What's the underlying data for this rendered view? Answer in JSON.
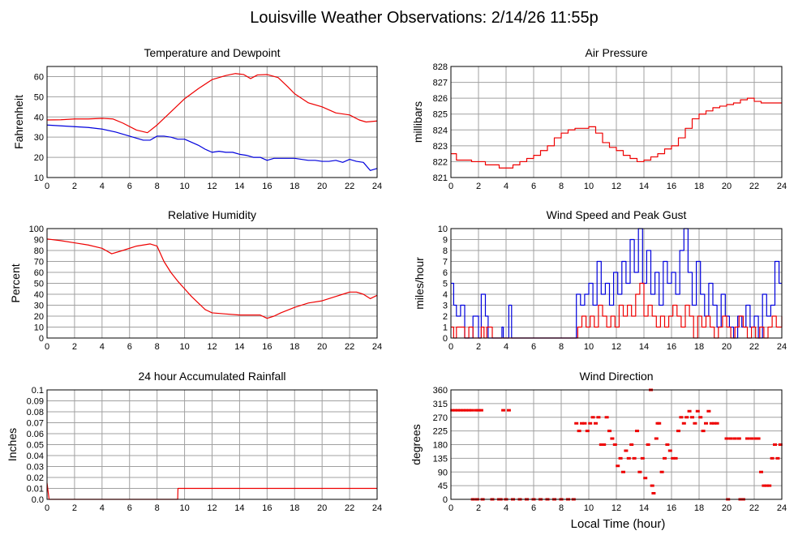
{
  "page": {
    "title": "Louisville Weather Observations: 2/14/26 11:55p",
    "xlabel": "Local Time (hour)"
  },
  "colors": {
    "red": "#ee0000",
    "blue": "#0000dd",
    "grid": "#a0a0a0",
    "frame": "#000000"
  },
  "chart_data": [
    {
      "id": "temp",
      "type": "line",
      "title": "Temperature and Dewpoint",
      "ylabel": "Fahrenheit",
      "xlim": [
        0,
        24
      ],
      "ylim": [
        10,
        65
      ],
      "yticks": [
        10,
        20,
        30,
        40,
        50,
        60
      ],
      "xticks": [
        0,
        2,
        4,
        6,
        8,
        10,
        12,
        14,
        16,
        18,
        20,
        22,
        24
      ],
      "grid": true,
      "series": [
        {
          "color": "red",
          "step": false,
          "x": [
            0,
            1,
            2,
            3,
            4,
            4.8,
            5.5,
            6.5,
            7.3,
            8,
            9,
            10,
            11,
            12,
            13,
            13.7,
            14.3,
            14.8,
            15.3,
            16,
            16.8,
            17.5,
            18,
            19,
            20,
            21,
            22,
            22.7,
            23.2,
            24
          ],
          "y": [
            38.5,
            38.6,
            39,
            39,
            39.3,
            39,
            37,
            33.5,
            32.2,
            36,
            42.5,
            49,
            54,
            58.5,
            60.5,
            61.5,
            61,
            59,
            60.8,
            61,
            59.5,
            55,
            51.5,
            47,
            45,
            42,
            41,
            38.5,
            37.5,
            38
          ]
        },
        {
          "color": "blue",
          "step": false,
          "x": [
            0,
            1,
            2,
            3,
            4,
            5,
            6,
            7,
            7.5,
            8,
            8.5,
            9,
            9.5,
            10,
            10.5,
            11,
            11.5,
            12,
            12.5,
            13,
            13.5,
            14,
            14.5,
            15,
            15.5,
            16,
            16.5,
            17,
            17.5,
            18,
            18.5,
            19,
            19.5,
            20,
            20.5,
            21,
            21.5,
            22,
            22.5,
            23,
            23.5,
            24
          ],
          "y": [
            36,
            35.6,
            35.2,
            34.8,
            34,
            32.5,
            30.5,
            28.5,
            28.5,
            30.5,
            30.5,
            30,
            29,
            29,
            27.5,
            26,
            24,
            22.5,
            23,
            22.5,
            22.5,
            21.5,
            21,
            20,
            20,
            18.5,
            19.5,
            19.5,
            19.5,
            19.5,
            19,
            18.5,
            18.5,
            18,
            18,
            18.5,
            17.5,
            19,
            18,
            17.5,
            13.5,
            14.5
          ]
        }
      ]
    },
    {
      "id": "pressure",
      "type": "line",
      "title": "Air Pressure",
      "ylabel": "millibars",
      "xlim": [
        0,
        24
      ],
      "ylim": [
        821,
        828
      ],
      "yticks": [
        821,
        822,
        823,
        824,
        825,
        826,
        827,
        828
      ],
      "xticks": [
        0,
        2,
        4,
        6,
        8,
        10,
        12,
        14,
        16,
        18,
        20,
        22,
        24
      ],
      "grid": true,
      "series": [
        {
          "color": "red",
          "step": true,
          "x": [
            0,
            0.4,
            1.5,
            2.5,
            3.5,
            4.5,
            5,
            5.5,
            6,
            6.5,
            7,
            7.5,
            8,
            8.5,
            9,
            9.5,
            10,
            10.5,
            11,
            11.5,
            12,
            12.5,
            13,
            13.5,
            14,
            14.5,
            15,
            15.5,
            16,
            16.5,
            17,
            17.5,
            18,
            18.5,
            19,
            19.5,
            20,
            20.5,
            21,
            21.5,
            22,
            22.5,
            23,
            23.5,
            24
          ],
          "y": [
            822.5,
            822.1,
            822,
            821.8,
            821.6,
            821.8,
            822,
            822.2,
            822.4,
            822.7,
            823,
            823.5,
            823.8,
            824,
            824.1,
            824.1,
            824.2,
            823.8,
            823.2,
            822.9,
            822.7,
            822.4,
            822.2,
            822.0,
            822.1,
            822.3,
            822.5,
            822.8,
            823.0,
            823.5,
            824.1,
            824.7,
            825.0,
            825.2,
            825.4,
            825.5,
            825.6,
            825.7,
            825.9,
            826.0,
            825.8,
            825.7,
            825.7,
            825.7,
            825.7
          ]
        }
      ]
    },
    {
      "id": "rh",
      "type": "line",
      "title": "Relative Humidity",
      "ylabel": "Percent",
      "xlim": [
        0,
        24
      ],
      "ylim": [
        0,
        100
      ],
      "yticks": [
        0,
        10,
        20,
        30,
        40,
        50,
        60,
        70,
        80,
        90,
        100
      ],
      "xticks": [
        0,
        2,
        4,
        6,
        8,
        10,
        12,
        14,
        16,
        18,
        20,
        22,
        24
      ],
      "grid": true,
      "series": [
        {
          "color": "red",
          "step": false,
          "x": [
            0,
            1,
            2,
            3,
            4,
            4.7,
            5.5,
            6.5,
            7.5,
            8,
            8.5,
            9,
            9.5,
            10,
            10.5,
            11,
            11.5,
            12,
            13,
            14,
            15,
            15.5,
            16,
            16.5,
            17,
            18,
            19,
            20,
            21,
            21.5,
            22,
            22.5,
            23,
            23.5,
            24
          ],
          "y": [
            90.5,
            89,
            87,
            85,
            82,
            77,
            80,
            84,
            86,
            84,
            70,
            60,
            52,
            45,
            38,
            32,
            26,
            23,
            22,
            21,
            21,
            21,
            18,
            20,
            23,
            28,
            32,
            34,
            38,
            40,
            42,
            42,
            40,
            36,
            39
          ]
        }
      ]
    },
    {
      "id": "wind",
      "type": "line",
      "title": "Wind Speed and Peak Gust",
      "ylabel": "miles/hour",
      "xlim": [
        0,
        24
      ],
      "ylim": [
        0,
        10
      ],
      "yticks": [
        0,
        1,
        2,
        3,
        4,
        5,
        6,
        7,
        8,
        9,
        10
      ],
      "xticks": [
        0,
        2,
        4,
        6,
        8,
        10,
        12,
        14,
        16,
        18,
        20,
        22,
        24
      ],
      "grid": true,
      "series": [
        {
          "color": "blue",
          "step": true,
          "x": [
            0,
            0.2,
            0.4,
            0.7,
            1.0,
            1.3,
            1.6,
            2.0,
            2.2,
            2.5,
            2.7,
            3.0,
            3.7,
            3.8,
            4.2,
            4.4,
            9.0,
            9.1,
            9.4,
            9.7,
            10.0,
            10.3,
            10.6,
            10.9,
            11.2,
            11.5,
            11.8,
            12.1,
            12.4,
            12.7,
            13.0,
            13.3,
            13.6,
            13.9,
            14.2,
            14.5,
            14.8,
            15.1,
            15.4,
            15.7,
            16.0,
            16.3,
            16.6,
            16.9,
            17.2,
            17.5,
            17.8,
            18.1,
            18.4,
            18.7,
            19.0,
            19.3,
            19.6,
            19.9,
            20.2,
            20.5,
            20.8,
            21.1,
            21.4,
            21.7,
            22.0,
            22.3,
            22.6,
            22.9,
            23.2,
            23.5,
            23.8
          ],
          "y": [
            5,
            3,
            2,
            3,
            0,
            0,
            2,
            0,
            4,
            2,
            0,
            0,
            1,
            0,
            3,
            0,
            0,
            4,
            3,
            4,
            5,
            3,
            7,
            4,
            5,
            3,
            6,
            4,
            7,
            5,
            9,
            6,
            10,
            5,
            8,
            4,
            6,
            3,
            7,
            5,
            6,
            4,
            8,
            10,
            6,
            3,
            7,
            4,
            2,
            5,
            3,
            1,
            4,
            2,
            1,
            0,
            2,
            1,
            3,
            1,
            2,
            0,
            4,
            2,
            3,
            7,
            5
          ]
        },
        {
          "color": "red",
          "step": true,
          "x": [
            0,
            0.2,
            0.4,
            0.8,
            1.0,
            1.3,
            1.6,
            2.0,
            2.2,
            2.4,
            2.6,
            3.0,
            9.0,
            9.2,
            9.5,
            9.8,
            10.1,
            10.4,
            10.7,
            11.0,
            11.3,
            11.6,
            11.9,
            12.2,
            12.5,
            12.8,
            13.1,
            13.4,
            13.7,
            14.0,
            14.3,
            14.6,
            14.9,
            15.2,
            15.5,
            15.8,
            16.1,
            16.4,
            16.7,
            17.0,
            17.3,
            17.6,
            17.9,
            18.2,
            18.5,
            18.8,
            19.1,
            19.4,
            19.7,
            20.0,
            20.3,
            20.6,
            20.9,
            21.2,
            21.5,
            21.8,
            22.1,
            22.4,
            22.7,
            23.0,
            23.3,
            23.6,
            24.0
          ],
          "y": [
            1,
            0,
            1,
            1,
            0,
            1,
            0,
            0,
            1,
            0,
            1,
            0,
            0,
            1,
            2,
            1,
            2,
            1,
            3,
            2,
            1,
            2,
            1,
            3,
            2,
            3,
            2,
            4,
            5,
            2,
            3,
            2,
            1,
            2,
            1,
            2,
            3,
            2,
            1,
            3,
            2,
            0,
            2,
            1,
            2,
            1,
            0,
            1,
            2,
            1,
            0,
            1,
            2,
            1,
            0,
            1,
            0,
            1,
            0,
            1,
            2,
            1,
            2
          ]
        }
      ]
    },
    {
      "id": "rain",
      "type": "line",
      "title": "24 hour Accumulated Rainfall",
      "ylabel": "Inches",
      "xlim": [
        0,
        24
      ],
      "ylim": [
        0,
        0.1
      ],
      "yticks": [
        0.0,
        0.01,
        0.02,
        0.03,
        0.04,
        0.05,
        0.06,
        0.07,
        0.08,
        0.09,
        0.1
      ],
      "ytick_labels": [
        "0.0",
        "0.01",
        "0.02",
        "0.03",
        "0.04",
        "0.05",
        "0.06",
        "0.07",
        "0.08",
        "0.09",
        "0.1"
      ],
      "xticks": [
        0,
        2,
        4,
        6,
        8,
        10,
        12,
        14,
        16,
        18,
        20,
        22,
        24
      ],
      "grid": true,
      "series": [
        {
          "color": "red",
          "step": false,
          "x": [
            0,
            0.1,
            0.15,
            9.5,
            9.52,
            24
          ],
          "y": [
            0.015,
            0.005,
            0,
            0,
            0.01,
            0.01
          ]
        }
      ]
    },
    {
      "id": "dir",
      "type": "scatter",
      "title": "Wind Direction",
      "ylabel": "degrees",
      "xlim": [
        0,
        24
      ],
      "ylim": [
        0,
        360
      ],
      "yticks": [
        0,
        45,
        90,
        135,
        180,
        225,
        270,
        315,
        360
      ],
      "xticks": [
        0,
        2,
        4,
        6,
        8,
        10,
        12,
        14,
        16,
        18,
        20,
        22,
        24
      ],
      "grid": true,
      "series": [
        {
          "color": "red",
          "x": [
            0.1,
            0.3,
            0.5,
            0.7,
            0.9,
            1.1,
            1.3,
            1.5,
            1.8,
            2.0,
            2.2,
            1.6,
            1.9,
            2.3,
            3.0,
            3.5,
            3.8,
            3.6,
            4.0,
            4.2,
            4.5,
            5.0,
            5.5,
            6.0,
            6.5,
            7.0,
            7.5,
            8.0,
            8.5,
            8.9,
            9.1,
            9.3,
            9.5,
            9.7,
            9.9,
            10.1,
            10.3,
            10.5,
            10.7,
            10.9,
            11.1,
            11.3,
            11.5,
            11.7,
            11.9,
            12.1,
            12.3,
            12.5,
            12.7,
            12.9,
            13.1,
            13.3,
            13.5,
            13.7,
            13.9,
            14.1,
            14.3,
            14.5,
            14.7,
            14.9,
            15.1,
            15.3,
            15.5,
            15.7,
            15.9,
            16.1,
            16.3,
            16.5,
            16.7,
            16.9,
            17.1,
            17.3,
            17.5,
            17.7,
            17.9,
            18.1,
            18.3,
            18.5,
            18.7,
            18.9,
            19.1,
            19.3,
            20.0,
            20.3,
            20.6,
            20.9,
            21.2,
            21.5,
            21.8,
            22.1,
            22.3,
            22.5,
            22.7,
            22.9,
            23.1,
            23.3,
            23.5,
            23.7,
            23.9,
            20.1,
            21.0,
            15.0,
            14.6
          ],
          "y": [
            293,
            293,
            293,
            293,
            293,
            293,
            293,
            293,
            293,
            293,
            293,
            0,
            0,
            0,
            0,
            0,
            293,
            0,
            0,
            293,
            0,
            0,
            0,
            0,
            0,
            0,
            0,
            0,
            0,
            0,
            250,
            225,
            250,
            250,
            225,
            250,
            270,
            250,
            270,
            180,
            180,
            270,
            225,
            200,
            180,
            110,
            135,
            90,
            160,
            135,
            180,
            135,
            225,
            90,
            135,
            70,
            180,
            360,
            20,
            200,
            250,
            90,
            135,
            180,
            160,
            135,
            135,
            225,
            270,
            250,
            270,
            290,
            270,
            250,
            290,
            270,
            225,
            250,
            290,
            250,
            250,
            250,
            200,
            200,
            200,
            200,
            0,
            200,
            200,
            200,
            200,
            90,
            45,
            45,
            45,
            135,
            180,
            135,
            180,
            0,
            0,
            250,
            45
          ]
        }
      ]
    }
  ]
}
